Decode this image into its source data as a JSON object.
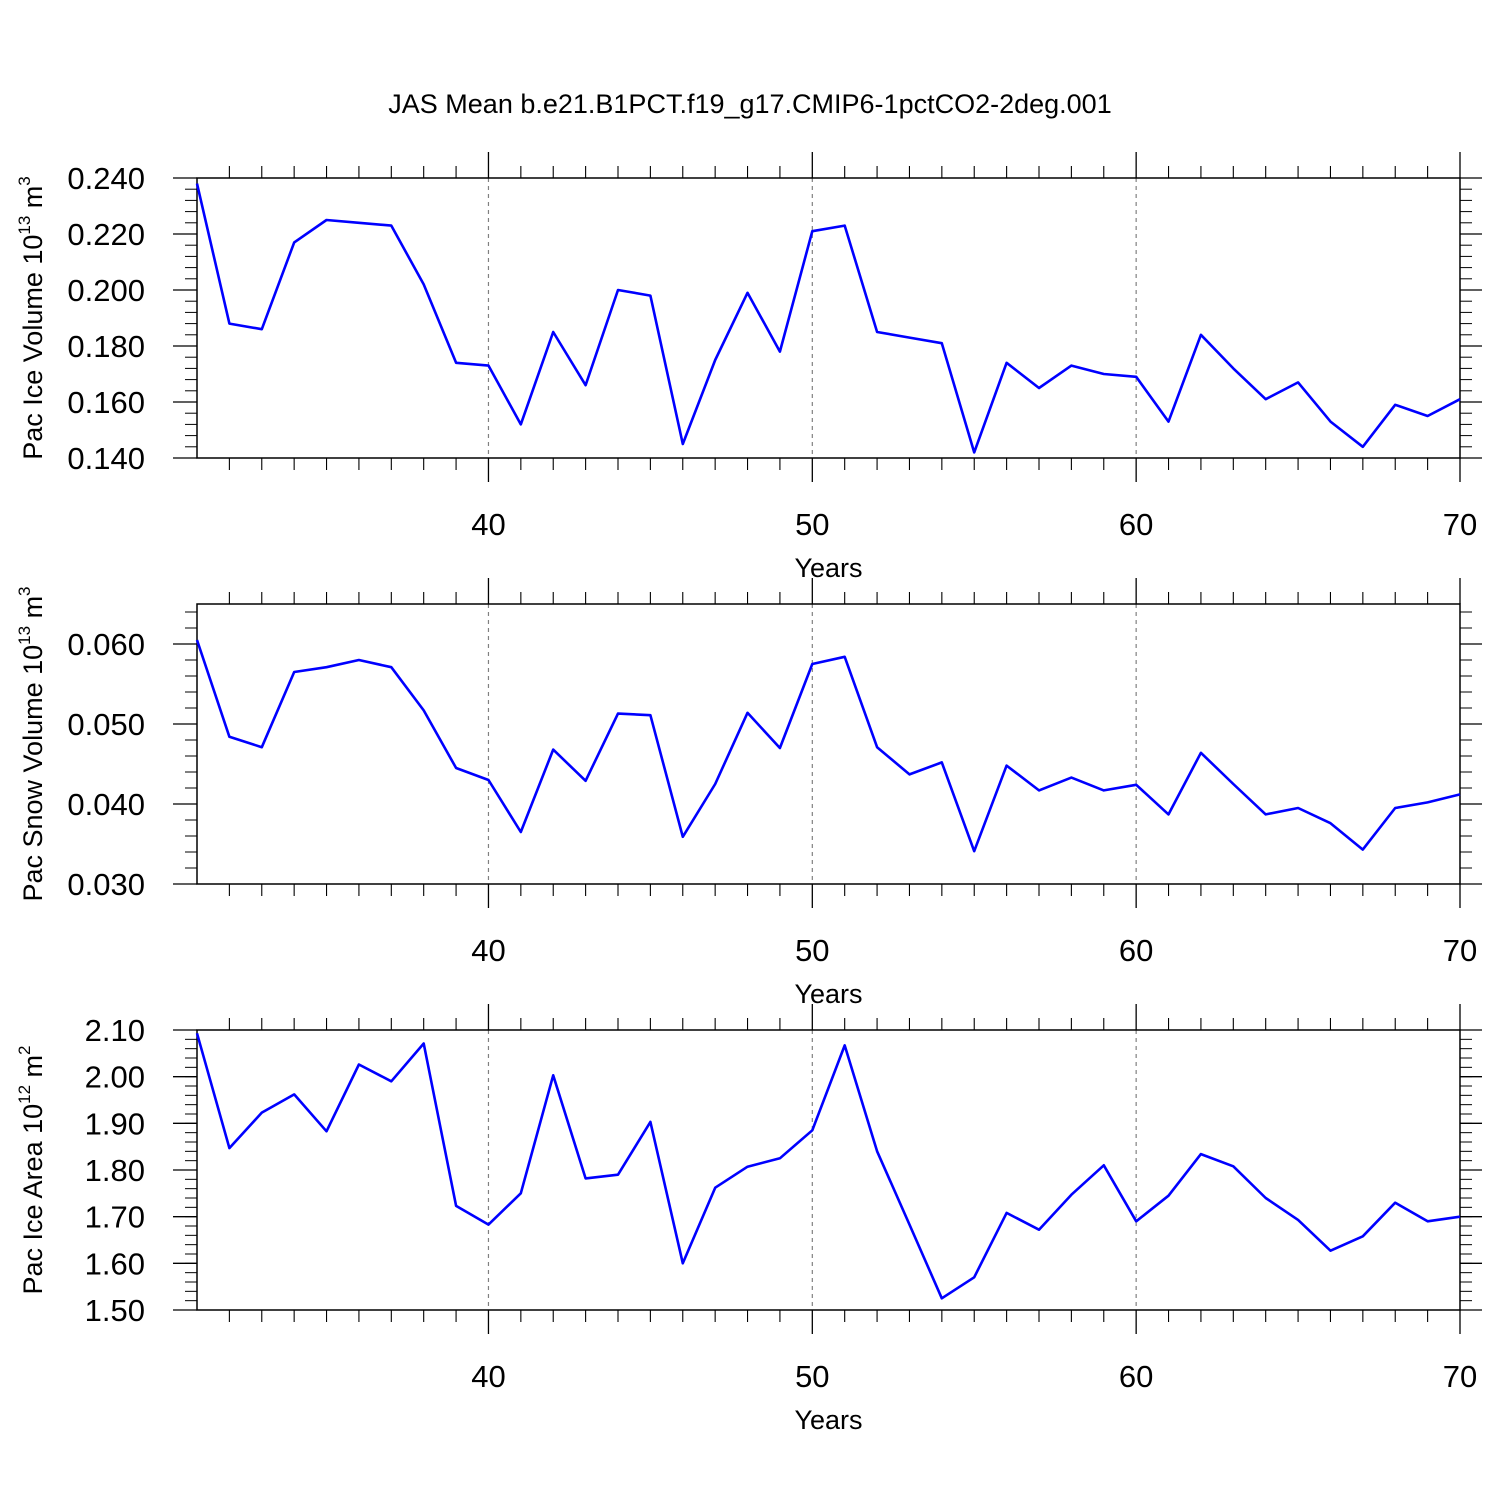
{
  "title": "JAS Mean b.e21.B1PCT.f19_g17.CMIP6-1pctCO2-2deg.001",
  "colors": {
    "line": "#0000ff",
    "axis": "#000000",
    "grid": "#808080"
  },
  "chart_data": [
    {
      "type": "line",
      "ylabel_main": "Pac Ice Volume 10",
      "ylabel_sup": "13",
      "ylabel_unit": " m",
      "ylabel_unit_sup": "3",
      "xlabel": "Years",
      "xlim": [
        31,
        70
      ],
      "ylim": [
        0.14,
        0.24
      ],
      "yticks": [
        "0.140",
        "0.160",
        "0.180",
        "0.200",
        "0.220",
        "0.240"
      ],
      "yticks_values": [
        0.14,
        0.16,
        0.18,
        0.2,
        0.22,
        0.24
      ],
      "xticks": [
        "40",
        "50",
        "60",
        "70"
      ],
      "xticks_values": [
        40,
        50,
        60,
        70
      ],
      "grid_x": [
        40,
        50,
        60
      ],
      "x": [
        31,
        32,
        33,
        34,
        35,
        36,
        37,
        38,
        39,
        40,
        41,
        42,
        43,
        44,
        45,
        46,
        47,
        48,
        49,
        50,
        51,
        52,
        53,
        54,
        55,
        56,
        57,
        58,
        59,
        60,
        61,
        62,
        63,
        64,
        65,
        66,
        67,
        68,
        69,
        70
      ],
      "values": [
        0.238,
        0.188,
        0.186,
        0.217,
        0.225,
        0.224,
        0.223,
        0.202,
        0.174,
        0.173,
        0.152,
        0.185,
        0.166,
        0.2,
        0.198,
        0.145,
        0.175,
        0.199,
        0.178,
        0.221,
        0.223,
        0.185,
        0.183,
        0.181,
        0.142,
        0.174,
        0.165,
        0.173,
        0.17,
        0.169,
        0.153,
        0.184,
        0.172,
        0.161,
        0.167,
        0.153,
        0.144,
        0.159,
        0.155,
        0.161
      ]
    },
    {
      "type": "line",
      "ylabel_main": "Pac Snow Volume 10",
      "ylabel_sup": "13",
      "ylabel_unit": " m",
      "ylabel_unit_sup": "3",
      "xlabel": "Years",
      "xlim": [
        31,
        70
      ],
      "ylim": [
        0.03,
        0.065
      ],
      "yticks": [
        "0.030",
        "0.040",
        "0.050",
        "0.060"
      ],
      "yticks_values": [
        0.03,
        0.04,
        0.05,
        0.06
      ],
      "xticks": [
        "40",
        "50",
        "60",
        "70"
      ],
      "xticks_values": [
        40,
        50,
        60,
        70
      ],
      "grid_x": [
        40,
        50,
        60
      ],
      "x": [
        31,
        32,
        33,
        34,
        35,
        36,
        37,
        38,
        39,
        40,
        41,
        42,
        43,
        44,
        45,
        46,
        47,
        48,
        49,
        50,
        51,
        52,
        53,
        54,
        55,
        56,
        57,
        58,
        59,
        60,
        61,
        62,
        63,
        64,
        65,
        66,
        67,
        68,
        69,
        70
      ],
      "values": [
        0.0605,
        0.0484,
        0.0471,
        0.0565,
        0.0571,
        0.058,
        0.0571,
        0.0517,
        0.0445,
        0.043,
        0.0365,
        0.0468,
        0.0429,
        0.0513,
        0.0511,
        0.0359,
        0.0425,
        0.0514,
        0.047,
        0.0575,
        0.0584,
        0.0471,
        0.0437,
        0.0452,
        0.0341,
        0.0448,
        0.0417,
        0.0433,
        0.0417,
        0.0424,
        0.0387,
        0.0464,
        0.0425,
        0.0387,
        0.0395,
        0.0376,
        0.0343,
        0.0395,
        0.0402,
        0.0412
      ]
    },
    {
      "type": "line",
      "ylabel_main": "Pac Ice Area 10",
      "ylabel_sup": "12",
      "ylabel_unit": " m",
      "ylabel_unit_sup": "2",
      "xlabel": "Years",
      "xlim": [
        31,
        70
      ],
      "ylim": [
        1.5,
        2.1
      ],
      "yticks": [
        "1.50",
        "1.60",
        "1.70",
        "1.80",
        "1.90",
        "2.00",
        "2.10"
      ],
      "yticks_values": [
        1.5,
        1.6,
        1.7,
        1.8,
        1.9,
        2.0,
        2.1
      ],
      "xticks": [
        "40",
        "50",
        "60",
        "70"
      ],
      "xticks_values": [
        40,
        50,
        60,
        70
      ],
      "grid_x": [
        40,
        50,
        60
      ],
      "x": [
        31,
        32,
        33,
        34,
        35,
        36,
        37,
        38,
        39,
        40,
        41,
        42,
        43,
        44,
        45,
        46,
        47,
        48,
        49,
        50,
        51,
        52,
        53,
        54,
        55,
        56,
        57,
        58,
        59,
        60,
        61,
        62,
        63,
        64,
        65,
        66,
        67,
        68,
        69,
        70
      ],
      "values": [
        2.093,
        1.847,
        1.923,
        1.962,
        1.883,
        2.026,
        1.99,
        2.071,
        1.723,
        1.683,
        1.75,
        2.003,
        1.782,
        1.79,
        1.903,
        1.6,
        1.762,
        1.807,
        1.825,
        1.885,
        2.067,
        1.84,
        1.683,
        1.525,
        1.57,
        1.708,
        1.672,
        1.747,
        1.81,
        1.69,
        1.745,
        1.834,
        1.808,
        1.74,
        1.693,
        1.627,
        1.658,
        1.73,
        1.69,
        1.7
      ]
    }
  ]
}
